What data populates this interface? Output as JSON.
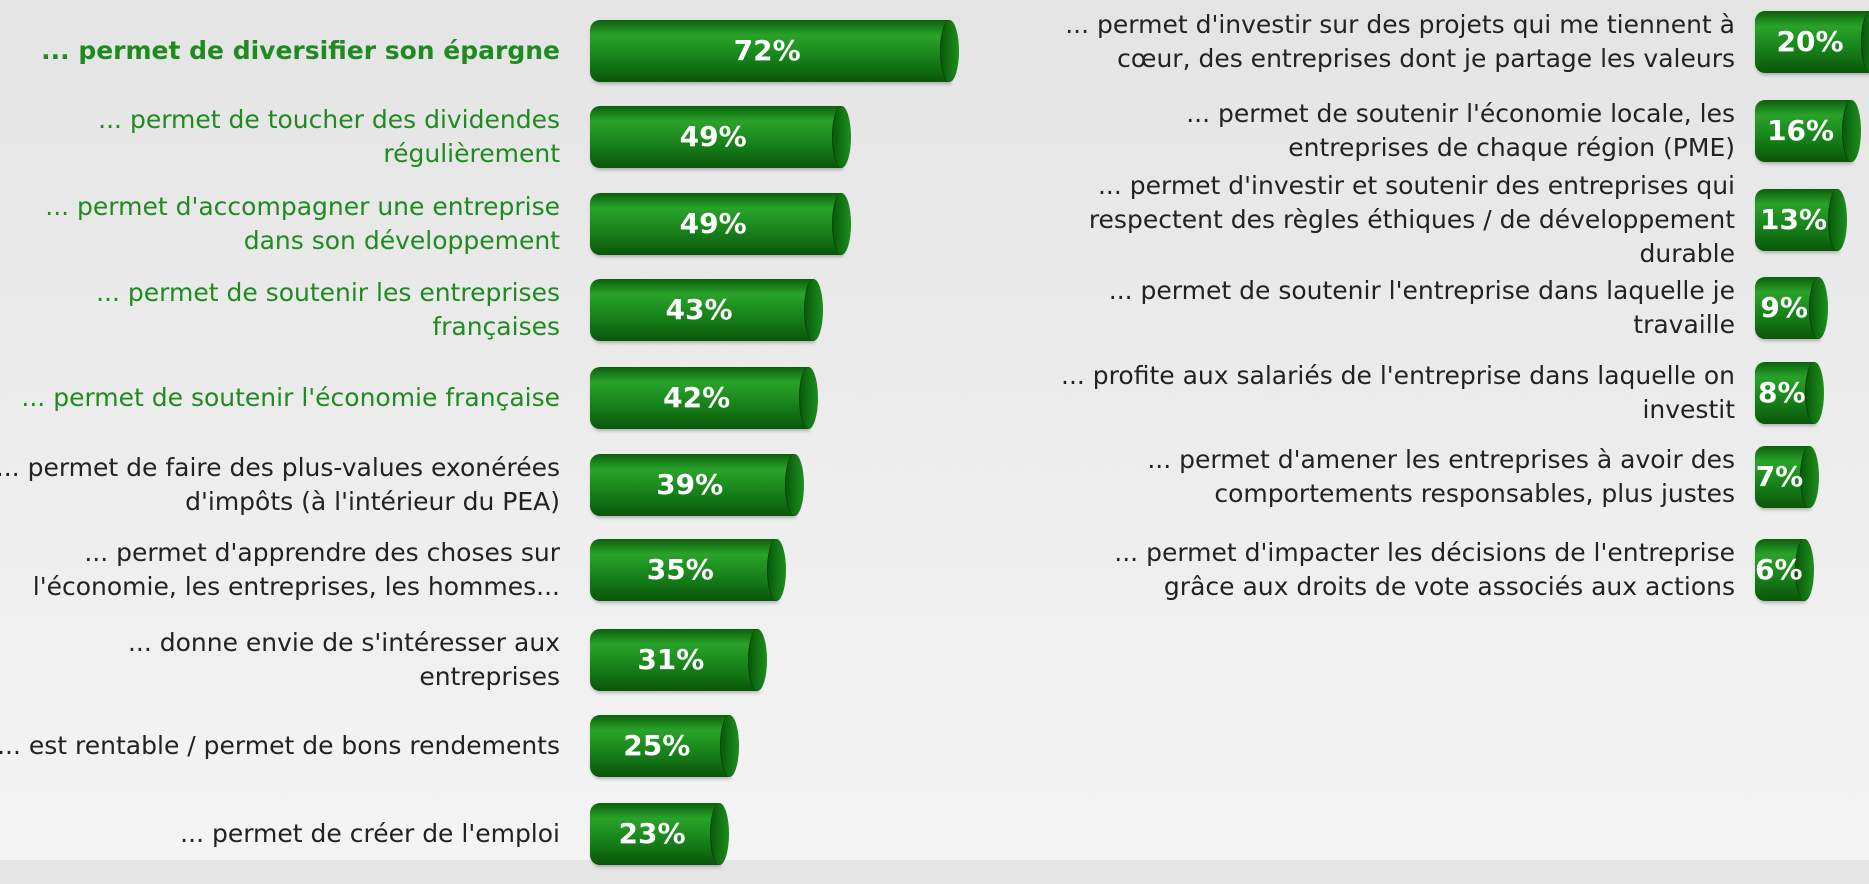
{
  "chart_data": [
    {
      "type": "bar",
      "categories": [
        "... permet de diversifier son épargne",
        "... permet de toucher des dividendes régulièrement",
        "... permet d'accompagner une entreprise dans son développement",
        "... permet de soutenir les entreprises françaises",
        "... permet de soutenir l'économie française",
        "... permet de faire des plus-values exonérées d'impôts (à l'intérieur du PEA)",
        "... permet d'apprendre des choses sur l'économie, les entreprises, les hommes...",
        "... donne envie de s'intéresser aux entreprises",
        "... est rentable / permet de bons rendements",
        "... permet de créer de l'emploi"
      ],
      "values": [
        72,
        49,
        49,
        43,
        42,
        39,
        35,
        31,
        25,
        23
      ],
      "value_labels": [
        "72%",
        "49%",
        "49%",
        "43%",
        "42%",
        "39%",
        "35%",
        "31%",
        "25%",
        "23%"
      ],
      "color": "#1a8a1a",
      "label_colors": [
        "#1f8a1f",
        "#1f8a1f",
        "#1f8a1f",
        "#1f8a1f",
        "#1f8a1f",
        "#222222",
        "#222222",
        "#222222",
        "#222222",
        "#222222"
      ],
      "bold_index": 0
    },
    {
      "type": "bar",
      "categories": [
        "... permet d'investir sur des projets qui me tiennent à cœur, des entreprises dont je partage les valeurs",
        "... permet de soutenir l'économie locale, les entreprises de chaque région (PME)",
        "... permet d'investir et soutenir des entreprises qui respectent des règles éthiques / de développement durable",
        "... permet de soutenir l'entreprise dans laquelle je travaille",
        "... profite aux salariés de l'entreprise dans laquelle on investit",
        "... permet d'amener les entreprises à avoir des comportements responsables, plus justes",
        "... permet d'impacter les décisions de l'entreprise grâce aux droits de vote associés aux actions"
      ],
      "values": [
        20,
        16,
        13,
        9,
        8,
        7,
        6
      ],
      "value_labels": [
        "20%",
        "16%",
        "13%",
        "9%",
        "8%",
        "7%",
        "6%"
      ],
      "color": "#1a8a1a",
      "label_colors": [
        "#222222",
        "#222222",
        "#222222",
        "#222222",
        "#222222",
        "#222222",
        "#222222"
      ]
    }
  ]
}
